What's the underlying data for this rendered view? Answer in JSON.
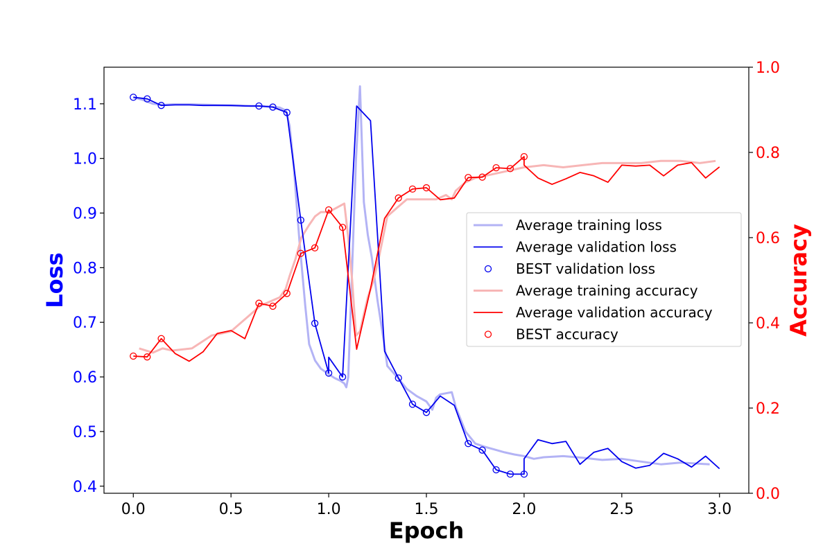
{
  "chart_data": {
    "type": "line",
    "xlabel": "Epoch",
    "ylabel_left": "Loss",
    "ylabel_right": "Accuracy",
    "xlim": [
      -0.15,
      3.15
    ],
    "ylim_left": [
      0.387,
      1.167
    ],
    "ylim_right": [
      0.0,
      1.0
    ],
    "x_ticks": [
      0.0,
      0.5,
      1.0,
      1.5,
      2.0,
      2.5,
      3.0
    ],
    "x_tick_labels": [
      "0.0",
      "0.5",
      "1.0",
      "1.5",
      "2.0",
      "2.5",
      "3.0"
    ],
    "left_ticks": [
      0.4,
      0.5,
      0.6,
      0.7,
      0.8,
      0.9,
      1.0,
      1.1
    ],
    "left_tick_labels": [
      "0.4",
      "0.5",
      "0.6",
      "0.7",
      "0.8",
      "0.9",
      "1.0",
      "1.1"
    ],
    "right_ticks": [
      0.0,
      0.2,
      0.4,
      0.6,
      0.8,
      1.0
    ],
    "right_tick_labels": [
      "0.0",
      "0.2",
      "0.4",
      "0.6",
      "0.8",
      "1.0"
    ],
    "grid": false,
    "legend_position": "center-right",
    "colors": {
      "left_axis": "#0000ff",
      "right_axis": "#ff0000",
      "train_loss": "#b3b3f5",
      "val_loss": "#0000ee",
      "train_acc": "#f7b6b6",
      "val_acc": "#ff0000"
    },
    "series": [
      {
        "name": "Average training loss",
        "axis": "left",
        "style": "line-light",
        "x": [
          0.0,
          0.05,
          0.1,
          0.15,
          0.2,
          0.3,
          0.4,
          0.5,
          0.55,
          0.6,
          0.65,
          0.7,
          0.75,
          0.78,
          0.8,
          0.82,
          0.85,
          0.88,
          0.9,
          0.93,
          0.96,
          1.0,
          1.03,
          1.06,
          1.08,
          1.09,
          1.1,
          1.12,
          1.14,
          1.16,
          1.18,
          1.2,
          1.22,
          1.25,
          1.28,
          1.3,
          1.35,
          1.4,
          1.45,
          1.5,
          1.53,
          1.55,
          1.57,
          1.6,
          1.63,
          1.65,
          1.7,
          1.75,
          1.8,
          1.85,
          1.9,
          1.95,
          2.0,
          2.05,
          2.1,
          2.2,
          2.3,
          2.4,
          2.5,
          2.6,
          2.7,
          2.8,
          2.9,
          2.95
        ],
        "y": [
          1.112,
          1.107,
          1.1,
          1.098,
          1.099,
          1.099,
          1.098,
          1.097,
          1.097,
          1.096,
          1.096,
          1.095,
          1.093,
          1.088,
          1.06,
          0.99,
          0.85,
          0.73,
          0.66,
          0.63,
          0.615,
          0.605,
          0.598,
          0.593,
          0.588,
          0.581,
          0.6,
          0.8,
          1.0,
          1.132,
          0.92,
          0.86,
          0.82,
          0.74,
          0.67,
          0.62,
          0.6,
          0.578,
          0.565,
          0.555,
          0.54,
          0.562,
          0.568,
          0.57,
          0.572,
          0.545,
          0.5,
          0.478,
          0.472,
          0.467,
          0.462,
          0.458,
          0.455,
          0.45,
          0.453,
          0.455,
          0.452,
          0.448,
          0.45,
          0.445,
          0.44,
          0.443,
          0.441,
          0.44
        ]
      },
      {
        "name": "Average validation loss",
        "axis": "left",
        "style": "line-dark",
        "x": [
          0.0,
          0.071,
          0.143,
          0.214,
          0.286,
          0.357,
          0.429,
          0.5,
          0.571,
          0.643,
          0.714,
          0.786,
          0.857,
          0.929,
          1.0,
          1.0,
          1.071,
          1.071,
          1.143,
          1.214,
          1.286,
          1.357,
          1.429,
          1.5,
          1.571,
          1.643,
          1.714,
          1.786,
          1.857,
          1.929,
          2.0,
          2.0,
          2.071,
          2.143,
          2.214,
          2.286,
          2.357,
          2.429,
          2.5,
          2.571,
          2.643,
          2.714,
          2.786,
          2.857,
          2.929,
          3.0
        ],
        "y": [
          1.112,
          1.109,
          1.097,
          1.098,
          1.098,
          1.097,
          1.097,
          1.097,
          1.096,
          1.096,
          1.094,
          1.084,
          0.887,
          0.698,
          0.607,
          0.636,
          0.6,
          0.6,
          1.096,
          1.069,
          0.647,
          0.598,
          0.55,
          0.535,
          0.565,
          0.548,
          0.478,
          0.466,
          0.43,
          0.422,
          0.422,
          0.45,
          0.485,
          0.478,
          0.482,
          0.44,
          0.462,
          0.469,
          0.445,
          0.433,
          0.438,
          0.46,
          0.45,
          0.435,
          0.455,
          0.432
        ]
      },
      {
        "name": "BEST validation loss",
        "axis": "left",
        "style": "markers",
        "x": [
          0.0,
          0.071,
          0.143,
          0.643,
          0.714,
          0.786,
          0.857,
          0.929,
          1.0,
          1.071,
          1.357,
          1.429,
          1.5,
          1.714,
          1.786,
          1.857,
          1.929,
          2.0
        ],
        "y": [
          1.112,
          1.109,
          1.097,
          1.096,
          1.094,
          1.084,
          0.887,
          0.698,
          0.607,
          0.6,
          0.598,
          0.55,
          0.535,
          0.478,
          0.466,
          0.43,
          0.422,
          0.422
        ]
      },
      {
        "name": "Average training accuracy",
        "axis": "right",
        "style": "line-light",
        "x": [
          0.03,
          0.1,
          0.15,
          0.2,
          0.3,
          0.4,
          0.45,
          0.5,
          0.55,
          0.6,
          0.65,
          0.7,
          0.75,
          0.78,
          0.8,
          0.83,
          0.86,
          0.9,
          0.93,
          0.96,
          1.0,
          1.04,
          1.08,
          1.1,
          1.12,
          1.14,
          1.16,
          1.18,
          1.2,
          1.23,
          1.26,
          1.3,
          1.35,
          1.4,
          1.45,
          1.5,
          1.55,
          1.6,
          1.63,
          1.65,
          1.7,
          1.75,
          1.8,
          1.85,
          1.9,
          2.0,
          2.1,
          2.2,
          2.3,
          2.4,
          2.5,
          2.6,
          2.7,
          2.8,
          2.9,
          2.98
        ],
        "y": [
          0.34,
          0.33,
          0.34,
          0.335,
          0.34,
          0.37,
          0.375,
          0.38,
          0.4,
          0.42,
          0.44,
          0.45,
          0.46,
          0.48,
          0.51,
          0.55,
          0.6,
          0.63,
          0.65,
          0.66,
          0.66,
          0.67,
          0.68,
          0.6,
          0.5,
          0.37,
          0.38,
          0.42,
          0.46,
          0.5,
          0.56,
          0.65,
          0.67,
          0.69,
          0.69,
          0.69,
          0.69,
          0.7,
          0.69,
          0.71,
          0.73,
          0.74,
          0.745,
          0.75,
          0.755,
          0.765,
          0.77,
          0.765,
          0.77,
          0.775,
          0.775,
          0.775,
          0.78,
          0.78,
          0.775,
          0.78
        ]
      },
      {
        "name": "Average validation accuracy",
        "axis": "right",
        "style": "line-dark",
        "x": [
          0.0,
          0.071,
          0.143,
          0.214,
          0.286,
          0.357,
          0.429,
          0.5,
          0.571,
          0.643,
          0.714,
          0.786,
          0.857,
          0.929,
          1.0,
          1.071,
          1.143,
          1.214,
          1.286,
          1.357,
          1.429,
          1.5,
          1.571,
          1.643,
          1.714,
          1.786,
          1.857,
          1.929,
          2.0,
          2.0,
          2.071,
          2.143,
          2.214,
          2.286,
          2.357,
          2.429,
          2.5,
          2.571,
          2.643,
          2.714,
          2.786,
          2.857,
          2.929,
          3.0
        ],
        "y": [
          0.322,
          0.32,
          0.363,
          0.328,
          0.31,
          0.332,
          0.375,
          0.382,
          0.363,
          0.446,
          0.439,
          0.469,
          0.563,
          0.576,
          0.665,
          0.624,
          0.338,
          0.48,
          0.645,
          0.693,
          0.714,
          0.717,
          0.689,
          0.693,
          0.741,
          0.742,
          0.764,
          0.762,
          0.79,
          0.77,
          0.74,
          0.725,
          0.738,
          0.753,
          0.745,
          0.73,
          0.77,
          0.768,
          0.77,
          0.745,
          0.77,
          0.776,
          0.74,
          0.766
        ]
      },
      {
        "name": "BEST accuracy",
        "axis": "right",
        "style": "markers",
        "x": [
          0.0,
          0.071,
          0.143,
          0.643,
          0.714,
          0.786,
          0.857,
          0.929,
          1.0,
          1.071,
          1.357,
          1.429,
          1.5,
          1.714,
          1.786,
          1.857,
          1.929,
          2.0
        ],
        "y": [
          0.322,
          0.32,
          0.363,
          0.446,
          0.439,
          0.469,
          0.563,
          0.576,
          0.665,
          0.624,
          0.693,
          0.714,
          0.717,
          0.741,
          0.742,
          0.764,
          0.762,
          0.79
        ]
      }
    ]
  }
}
